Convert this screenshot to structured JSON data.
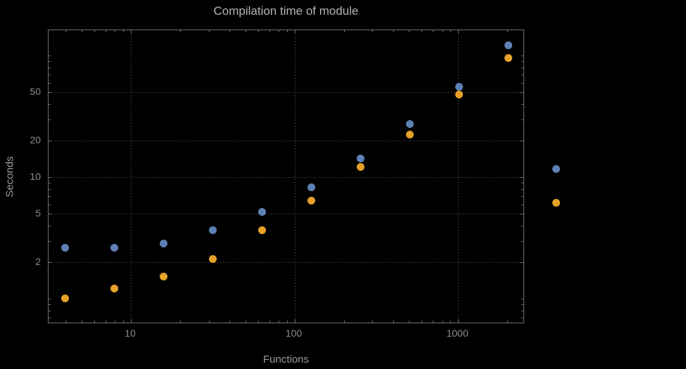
{
  "chart_data": {
    "type": "scatter",
    "title": "Compilation time of module",
    "xlabel": "Functions",
    "ylabel": "Seconds",
    "x_scale": "log",
    "y_scale": "log",
    "xlim": [
      3.14,
      2560
    ],
    "ylim": [
      0.62,
      162
    ],
    "x_ticks": [
      10,
      100,
      1000
    ],
    "y_ticks": [
      2,
      5,
      10,
      20,
      50
    ],
    "grid": true,
    "legend_position": "right",
    "x": [
      4,
      8,
      16,
      32,
      64,
      128,
      256,
      512,
      1024,
      2048
    ],
    "series": [
      {
        "name": "blue",
        "color": "#5e81b5",
        "values": [
          2.6,
          2.6,
          2.8,
          3.6,
          5.1,
          8.2,
          14,
          27,
          55,
          120
        ]
      },
      {
        "name": "orange",
        "color": "#e6a127",
        "values": [
          1.0,
          1.2,
          1.5,
          2.1,
          3.6,
          6.3,
          12,
          22,
          47,
          95
        ]
      }
    ]
  },
  "colors": {
    "background": "#000000",
    "frame": "#6e6e6e",
    "grid": "#5f5f5f",
    "title_text": "#b4b4b4",
    "axis_text": "#9a9a9a",
    "tick_text": "#8c8c8c"
  }
}
